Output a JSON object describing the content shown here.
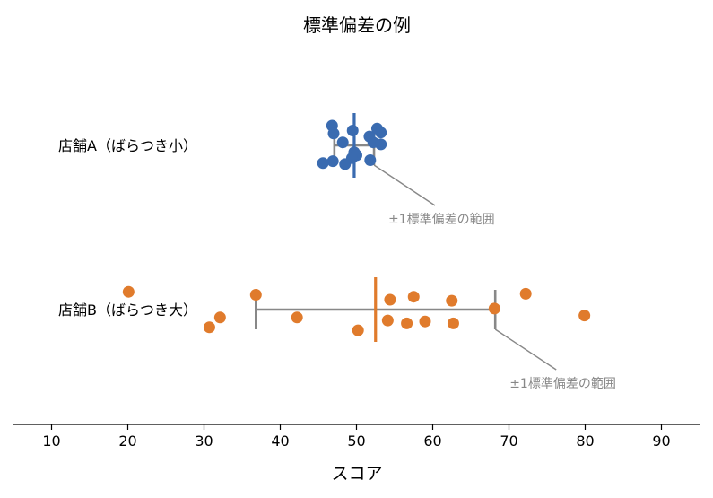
{
  "chart_data": {
    "type": "scatter",
    "title": "標準偏差の例",
    "xlabel": "スコア",
    "ylabel": "",
    "xlim": [
      5,
      95
    ],
    "xticks": [
      10,
      20,
      30,
      40,
      50,
      60,
      70,
      80,
      90
    ],
    "grid": false,
    "series": [
      {
        "name": "店舗A（ばらつき小）",
        "color": "#3a6bb0",
        "mean": 49.7,
        "std": 2.6,
        "points": [
          {
            "x": 46.8,
            "dy": 1.0
          },
          {
            "x": 47.0,
            "dy": 0.6
          },
          {
            "x": 49.5,
            "dy": 0.75
          },
          {
            "x": 52.7,
            "dy": 0.85
          },
          {
            "x": 53.2,
            "dy": 0.65
          },
          {
            "x": 51.7,
            "dy": 0.45
          },
          {
            "x": 48.2,
            "dy": 0.15
          },
          {
            "x": 52.2,
            "dy": 0.15
          },
          {
            "x": 53.2,
            "dy": 0.05
          },
          {
            "x": 49.7,
            "dy": -0.35
          },
          {
            "x": 50.0,
            "dy": -0.5
          },
          {
            "x": 46.9,
            "dy": -0.8
          },
          {
            "x": 45.6,
            "dy": -0.9
          },
          {
            "x": 48.5,
            "dy": -0.95
          },
          {
            "x": 49.4,
            "dy": -0.65
          },
          {
            "x": 51.8,
            "dy": -0.75
          }
        ],
        "annotation": "±1標準偏差の範囲"
      },
      {
        "name": "店舗B（ばらつき大）",
        "color": "#e07b2c",
        "mean": 52.5,
        "std": 15.7,
        "points": [
          {
            "x": 20.1,
            "dy": 0.9
          },
          {
            "x": 36.8,
            "dy": 0.75
          },
          {
            "x": 54.4,
            "dy": 0.5
          },
          {
            "x": 57.5,
            "dy": 0.65
          },
          {
            "x": 62.5,
            "dy": 0.45
          },
          {
            "x": 72.2,
            "dy": 0.8
          },
          {
            "x": 68.1,
            "dy": 0.05
          },
          {
            "x": 79.9,
            "dy": -0.3
          },
          {
            "x": 32.1,
            "dy": -0.4
          },
          {
            "x": 30.7,
            "dy": -0.9
          },
          {
            "x": 42.2,
            "dy": -0.4
          },
          {
            "x": 50.2,
            "dy": -1.05
          },
          {
            "x": 54.1,
            "dy": -0.55
          },
          {
            "x": 56.6,
            "dy": -0.7
          },
          {
            "x": 59.0,
            "dy": -0.6
          },
          {
            "x": 62.7,
            "dy": -0.7
          }
        ],
        "annotation": "±1標準偏差の範囲"
      }
    ]
  }
}
